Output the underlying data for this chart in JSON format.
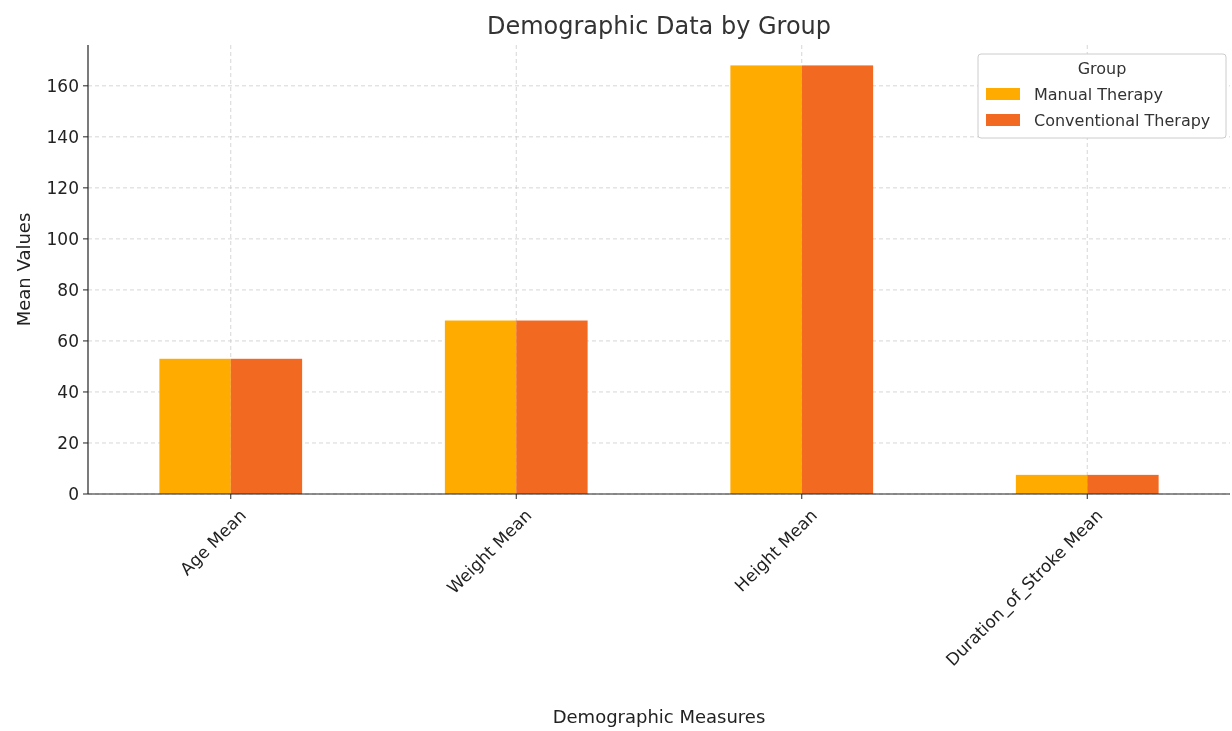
{
  "chart_data": {
    "type": "bar",
    "title": "Demographic Data by Group",
    "xlabel": "Demographic Measures",
    "ylabel": "Mean Values",
    "legend_title": "Group",
    "categories": [
      "Age Mean",
      "Weight Mean",
      "Height Mean",
      "Duration_of_Stroke Mean"
    ],
    "series": [
      {
        "name": "Manual Therapy",
        "color": "#ffab00",
        "values": [
          53,
          68,
          168,
          7.5
        ]
      },
      {
        "name": "Conventional Therapy",
        "color": "#f26922",
        "values": [
          53,
          68,
          168,
          7.5
        ]
      }
    ],
    "ylim": [
      0,
      176
    ],
    "yticks": [
      0,
      20,
      40,
      60,
      80,
      100,
      120,
      140,
      160
    ],
    "grid": true,
    "legend": "top right"
  }
}
